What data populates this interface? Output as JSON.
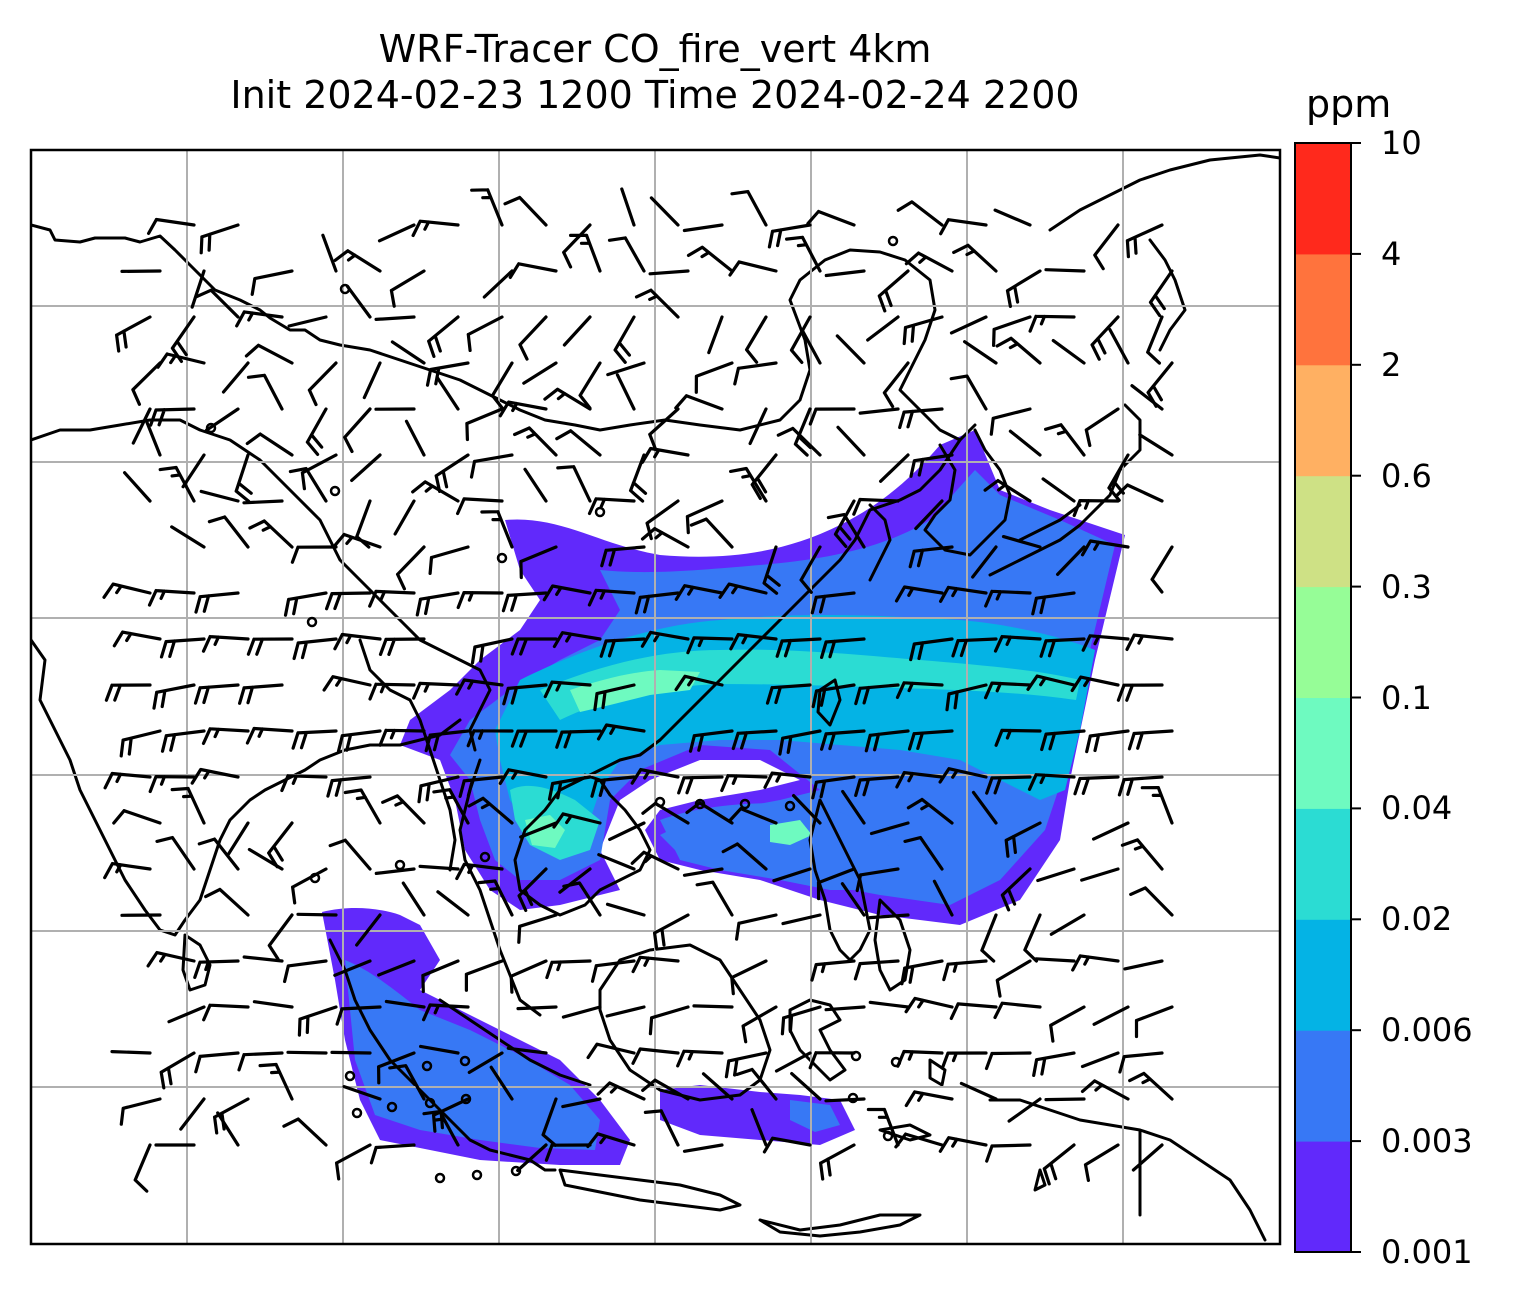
{
  "title": {
    "line1": "WRF-Tracer CO_fire_vert 4km",
    "line2": "Init 2024-02-23 1200 Time 2024-02-24 2200"
  },
  "colorbar": {
    "unit": "ppm",
    "levels": [
      "0.001",
      "0.003",
      "0.006",
      "0.02",
      "0.04",
      "0.1",
      "0.3",
      "0.6",
      "2",
      "4",
      "10"
    ],
    "colors": [
      "#6129fb",
      "#3778f5",
      "#04b3e5",
      "#2bdcd3",
      "#6efac0",
      "#96fd97",
      "#cee185",
      "#ffb062",
      "#ff733d",
      "#ff291c"
    ]
  },
  "map": {
    "gridlines": "on",
    "gridline_color": "#b0b0b0",
    "coastline_color": "#000000",
    "barb_color": "#000000"
  }
}
